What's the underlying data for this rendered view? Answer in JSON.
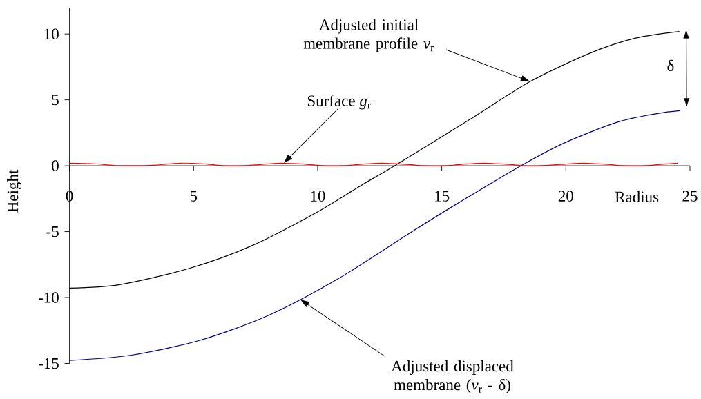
{
  "chart_data": {
    "type": "line",
    "xlabel": "Radius",
    "ylabel": "Height",
    "xlim": [
      0,
      25
    ],
    "ylim": [
      -15,
      12
    ],
    "xticks": [
      0,
      5,
      10,
      15,
      20,
      25
    ],
    "yticks": [
      -15,
      -10,
      -5,
      0,
      5,
      10
    ],
    "series": [
      {
        "color": "#000000",
        "x": [
          0,
          2.02,
          4.81,
          7.32,
          9.92,
          11.77,
          13.14,
          16.12,
          18.55,
          20.98,
          22.81,
          24.57
        ],
        "values": [
          -9.28,
          -9.02,
          -7.8,
          -6.09,
          -3.58,
          -1.47,
          0.05,
          3.5,
          6.38,
          8.55,
          9.69,
          10.19
        ]
      },
      {
        "color": "#000080",
        "x": [
          0,
          2.49,
          5.28,
          8.06,
          10.85,
          13.63,
          15.4,
          18.23,
          19.95,
          22.08,
          23.7,
          24.59
        ],
        "values": [
          -14.77,
          -14.37,
          -13.23,
          -11.32,
          -8.55,
          -5.2,
          -3.13,
          0.04,
          1.74,
          3.31,
          3.97,
          4.18
        ]
      },
      {
        "color": "#ff0000",
        "x": [
          0,
          1,
          1.8,
          2.2,
          3,
          3.5,
          4.5,
          5.5,
          6.2,
          7,
          7.6,
          8.5,
          9.5,
          10.2,
          11,
          11.7,
          12.6,
          13.6,
          14.3,
          15.1,
          15.8,
          16.7,
          17.7,
          18.3,
          19,
          19.8,
          20.7,
          21.7,
          22.3,
          23.2,
          23.8,
          24.5
        ],
        "values": [
          0.2,
          0.15,
          0.02,
          0,
          0,
          0.05,
          0.2,
          0.13,
          0,
          0,
          0.08,
          0.2,
          0.12,
          0,
          0,
          0.1,
          0.2,
          0.1,
          0,
          0,
          0.1,
          0.2,
          0.1,
          0,
          0,
          0.1,
          0.2,
          0.1,
          0,
          0,
          0.1,
          0.2
        ]
      }
    ],
    "annotations": [
      "Adjusted initial membrane profile *v*$_{r}$",
      "Surface *g*$_{r}$",
      "Adjusted displaced membrane (*v*$_{r}$ - δ)",
      "δ"
    ]
  }
}
